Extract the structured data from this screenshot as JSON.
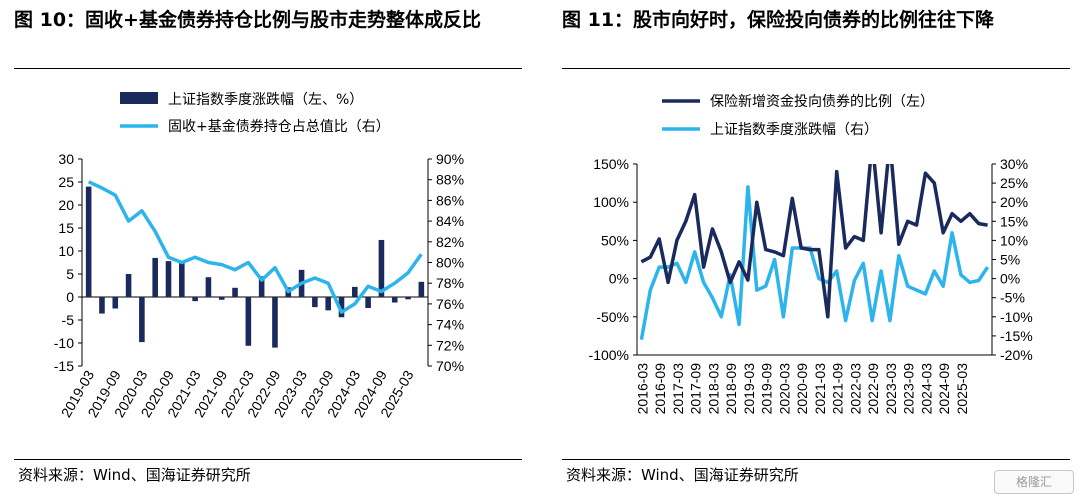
{
  "figure10": {
    "title": "图 10：固收+基金债券持仓比例与股市走势整体成反比",
    "source": "资料来源：Wind、国海证券研究所"
  },
  "figure11": {
    "title": "图 11：股市向好时，保险投向债券的比例往往下降",
    "source": "资料来源：Wind、国海证券研究所"
  },
  "watermark": "格隆汇",
  "colors": {
    "navy": "#1b2a5c",
    "sky": "#2db4ec"
  },
  "chart_data": [
    {
      "type": "bar+line",
      "x_labels": [
        "2019-03",
        "2019-09",
        "2020-03",
        "2020-09",
        "2021-03",
        "2021-09",
        "2022-03",
        "2022-09",
        "2023-03",
        "2023-09",
        "2024-03",
        "2024-09",
        "2025-03"
      ],
      "quarters": [
        "2019-03",
        "2019-06",
        "2019-09",
        "2019-12",
        "2020-03",
        "2020-06",
        "2020-09",
        "2020-12",
        "2021-03",
        "2021-06",
        "2021-09",
        "2021-12",
        "2022-03",
        "2022-06",
        "2022-09",
        "2022-12",
        "2023-03",
        "2023-06",
        "2023-09",
        "2023-12",
        "2024-03",
        "2024-06",
        "2024-09",
        "2024-12",
        "2025-03",
        "2025-06"
      ],
      "series": [
        {
          "name": "上证指数季度涨跌幅（左、%）",
          "axis": "left",
          "kind": "bar",
          "values": [
            24,
            -3.6,
            -2.5,
            5,
            -9.8,
            8.5,
            7.8,
            7.8,
            -0.9,
            4.3,
            -0.6,
            2.0,
            -10.6,
            4.5,
            -11.0,
            2.1,
            5.9,
            -2.2,
            -2.9,
            -4.4,
            2.2,
            -2.4,
            12.4,
            -1.2,
            -0.5,
            3.3
          ]
        },
        {
          "name": "固收+基金债券持仓占总值比（右）",
          "axis": "right",
          "kind": "line",
          "values": [
            87.8,
            87.2,
            86.5,
            84.0,
            85.0,
            83.0,
            80.5,
            80.0,
            80.5,
            80.0,
            79.8,
            79.3,
            80.0,
            78.3,
            79.5,
            77.2,
            78.0,
            78.5,
            78.0,
            75.2,
            76.0,
            77.7,
            77.2,
            78.0,
            79.0,
            80.8
          ]
        }
      ],
      "left_ticks": [
        30,
        25,
        20,
        15,
        10,
        5,
        0,
        -5,
        -10,
        -15
      ],
      "right_ticks": [
        "90%",
        "88%",
        "86%",
        "84%",
        "82%",
        "80%",
        "78%",
        "76%",
        "74%",
        "72%",
        "70%"
      ],
      "left_range": [
        -15,
        30
      ],
      "right_range": [
        70,
        90
      ]
    },
    {
      "type": "line",
      "x_labels": [
        "2016-03",
        "2016-09",
        "2017-03",
        "2017-09",
        "2018-03",
        "2018-09",
        "2019-03",
        "2019-09",
        "2020-03",
        "2020-09",
        "2021-03",
        "2021-09",
        "2022-03",
        "2022-09",
        "2023-03",
        "2023-09",
        "2024-03",
        "2024-09",
        "2025-03"
      ],
      "series": [
        {
          "name": "保险新增资金投向债券的比例（左）",
          "axis": "left",
          "values": [
            22,
            28,
            52,
            -5,
            50,
            75,
            110,
            15,
            65,
            35,
            -5,
            22,
            -2,
            100,
            38,
            35,
            30,
            105,
            40,
            38,
            38,
            -50,
            140,
            40,
            55,
            50,
            180,
            60,
            180,
            45,
            75,
            70,
            138,
            125,
            60,
            85,
            75,
            85,
            72,
            70
          ]
        },
        {
          "name": "上证指数季度涨跌幅（右）",
          "axis": "right",
          "values": [
            -16,
            -3,
            3,
            3,
            4,
            -1,
            7,
            -1,
            -5,
            -10,
            1,
            -12,
            24,
            -3,
            -2,
            5,
            -10,
            8,
            8,
            8,
            0,
            -1,
            2,
            -11,
            -0.5,
            4,
            -11,
            2,
            -11,
            6,
            -2,
            -3,
            -4,
            2,
            -2,
            12,
            1,
            -1,
            -0.5,
            3
          ]
        }
      ],
      "left_ticks": [
        "150%",
        "100%",
        "50%",
        "0%",
        "-50%",
        "-100%"
      ],
      "right_ticks": [
        "30%",
        "25%",
        "20%",
        "15%",
        "10%",
        "5%",
        "0%",
        "-5%",
        "-10%",
        "-15%",
        "-20%"
      ],
      "left_range": [
        -100,
        150
      ],
      "right_range": [
        -20,
        30
      ]
    }
  ]
}
